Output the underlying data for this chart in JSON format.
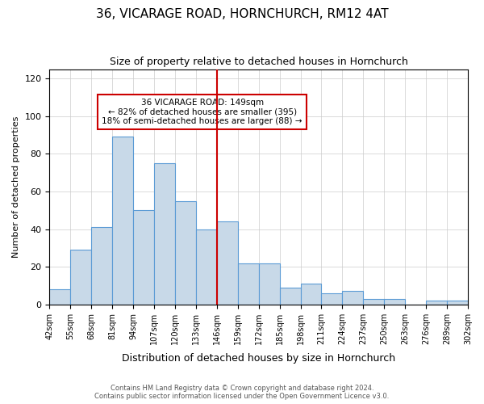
{
  "title": "36, VICARAGE ROAD, HORNCHURCH, RM12 4AT",
  "subtitle": "Size of property relative to detached houses in Hornchurch",
  "xlabel": "Distribution of detached houses by size in Hornchurch",
  "ylabel": "Number of detached properties",
  "bin_labels": [
    "42sqm",
    "55sqm",
    "68sqm",
    "81sqm",
    "94sqm",
    "107sqm",
    "120sqm",
    "133sqm",
    "146sqm",
    "159sqm",
    "172sqm",
    "185sqm",
    "198sqm",
    "211sqm",
    "224sqm",
    "237sqm",
    "250sqm",
    "263sqm",
    "276sqm",
    "289sqm",
    "302sqm"
  ],
  "bar_heights": [
    8,
    29,
    41,
    89,
    50,
    75,
    55,
    40,
    44,
    22,
    22,
    9,
    11,
    6,
    7,
    3,
    3,
    0,
    2,
    2
  ],
  "bar_color": "#c8d9e8",
  "bar_edge_color": "#5b9bd5",
  "property_line_label": "36 VICARAGE ROAD: 149sqm",
  "annotation_line1": "← 82% of detached houses are smaller (395)",
  "annotation_line2": "18% of semi-detached houses are larger (88) →",
  "vline_color": "#cc0000",
  "ylim": [
    0,
    125
  ],
  "yticks": [
    0,
    20,
    40,
    60,
    80,
    100,
    120
  ],
  "bin_edges": [
    42,
    55,
    68,
    81,
    94,
    107,
    120,
    133,
    146,
    159,
    172,
    185,
    198,
    211,
    224,
    237,
    250,
    263,
    276,
    289,
    302
  ],
  "footer_line1": "Contains HM Land Registry data © Crown copyright and database right 2024.",
  "footer_line2": "Contains public sector information licensed under the Open Government Licence v3.0.",
  "annotation_box_edge": "#cc0000",
  "background_color": "#ffffff",
  "property_vline_x": 146
}
